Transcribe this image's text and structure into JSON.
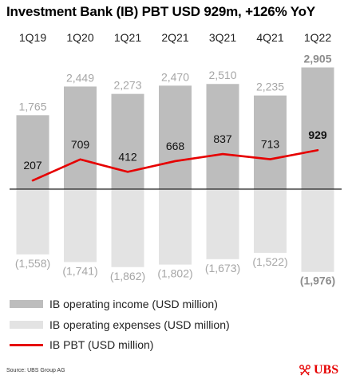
{
  "page": {
    "title": "Investment Bank (IB) PBT USD 929m, +126% YoY",
    "source": "Source: UBS Group AG",
    "logo_text": "UBS"
  },
  "colors": {
    "income": "#bdbdbd",
    "expenses": "#e3e3e3",
    "pbt_line": "#e60000",
    "axis": "#222222",
    "label_gray": "#a6a6a6",
    "logo_red": "#e60000"
  },
  "legend": [
    {
      "key": "income",
      "label": "IB operating income (USD million)",
      "icon": "gray-bar-swatch"
    },
    {
      "key": "expenses",
      "label": "IB operating expenses (USD million)",
      "icon": "light-gray-bar-swatch"
    },
    {
      "key": "pbt",
      "label": "IB PBT (USD million)",
      "icon": "red-line-swatch"
    }
  ],
  "chart_data": {
    "type": "bar",
    "title": "Investment Bank (IB) PBT USD 929m, +126% YoY",
    "categories": [
      "1Q19",
      "1Q20",
      "1Q21",
      "2Q21",
      "3Q21",
      "4Q21",
      "1Q22"
    ],
    "series": [
      {
        "name": "IB operating income (USD million)",
        "type": "bar",
        "values": [
          1765,
          2449,
          2273,
          2470,
          2510,
          2235,
          2905
        ],
        "labels": [
          "1,765",
          "2,449",
          "2,273",
          "2,470",
          "2,510",
          "2,235",
          "2,905"
        ]
      },
      {
        "name": "IB operating expenses (USD million)",
        "type": "bar",
        "values": [
          -1558,
          -1741,
          -1862,
          -1802,
          -1673,
          -1522,
          -1976
        ],
        "labels": [
          "(1,558)",
          "(1,741)",
          "(1,862)",
          "(1,802)",
          "(1,673)",
          "(1,522)",
          "(1,976)"
        ]
      },
      {
        "name": "IB PBT (USD million)",
        "type": "line",
        "values": [
          207,
          709,
          412,
          668,
          837,
          713,
          929
        ],
        "labels": [
          "207",
          "709",
          "412",
          "668",
          "837",
          "713",
          "929"
        ]
      }
    ],
    "highlight_category": "1Q22",
    "ylim": [
      -2000,
      3000
    ],
    "grid": false,
    "legend_position": "bottom-left"
  }
}
